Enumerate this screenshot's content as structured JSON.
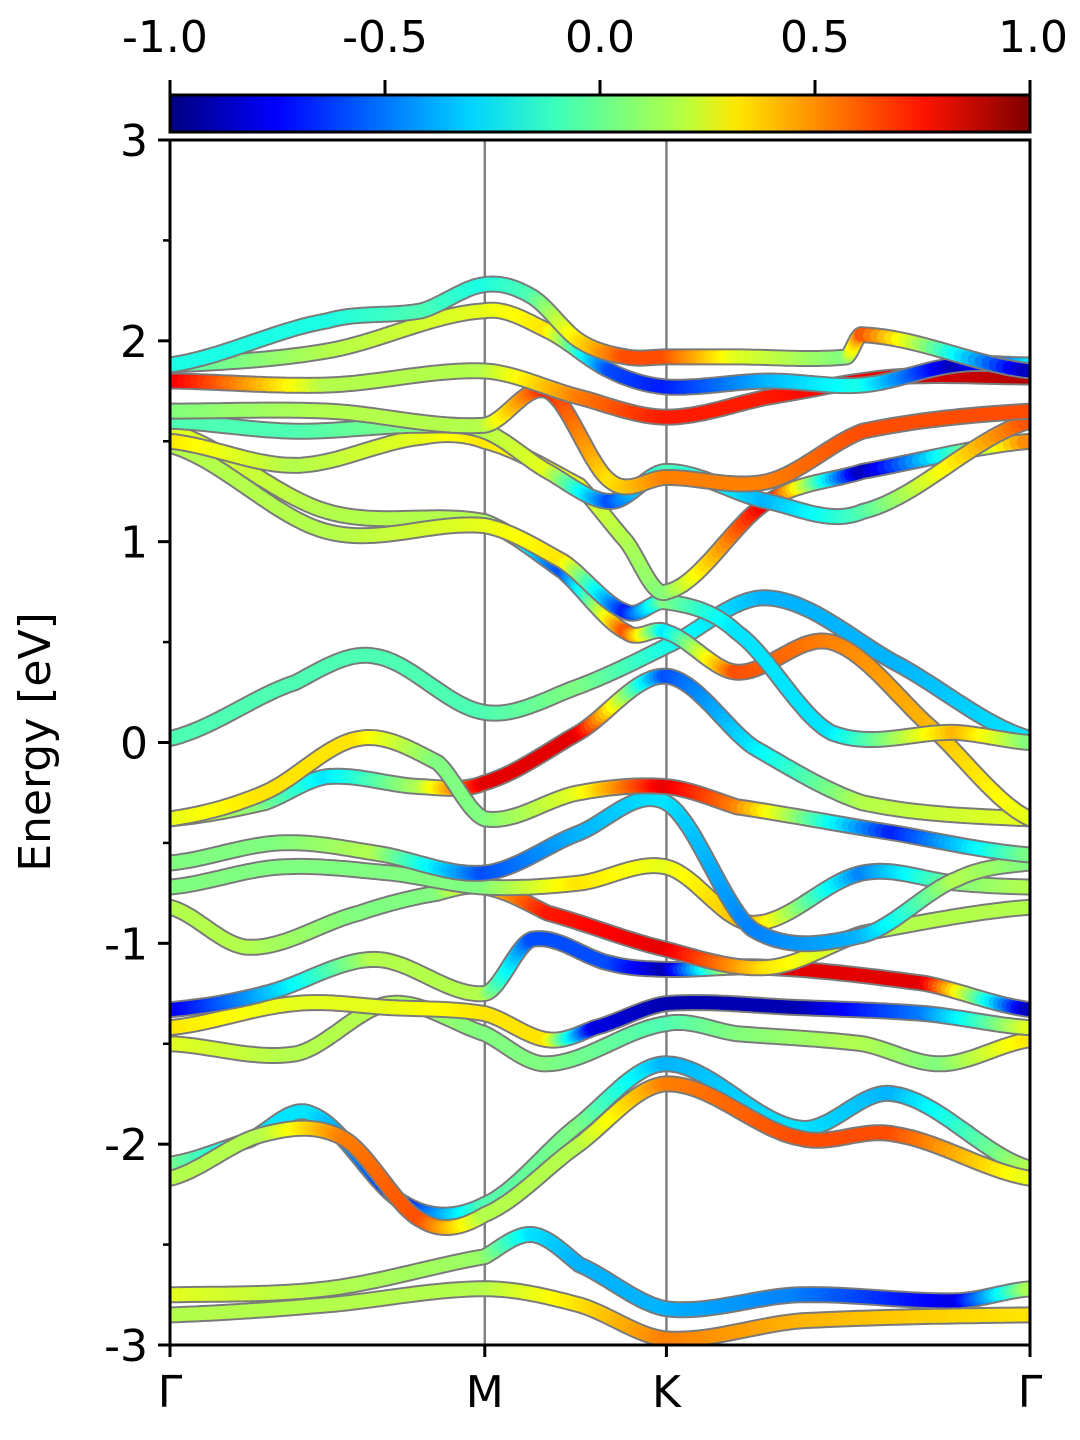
{
  "chart_data": {
    "type": "line",
    "title": "",
    "xlabel": "",
    "ylabel": "Energy [eV]",
    "ylim": [
      -3,
      3
    ],
    "yticks": [
      "-3",
      "-2",
      "-1",
      "0",
      "1",
      "2",
      "3"
    ],
    "ytick_values": [
      -3,
      -2,
      -1,
      0,
      1,
      2,
      3
    ],
    "xticks": [
      {
        "label": "Γ",
        "pos": 0.0
      },
      {
        "label": "M",
        "pos": 1.0
      },
      {
        "label": "K",
        "pos": 1.577
      },
      {
        "label": "Γ",
        "pos": 2.732
      }
    ],
    "xlim": [
      0.0,
      2.732
    ],
    "colorbar": {
      "ticks": [
        "-1.0",
        "-0.5",
        "0.0",
        "0.5",
        "1.0"
      ],
      "tick_values": [
        -1.0,
        -0.5,
        0.0,
        0.5,
        1.0
      ],
      "range": [
        -1.0,
        1.0
      ],
      "colormap": "jet"
    },
    "bands": [
      {
        "x": [
          0,
          0.5,
          1.0,
          1.3,
          1.577,
          2.0,
          2.732
        ],
        "y": [
          -2.85,
          -2.8,
          -2.72,
          -2.8,
          -2.97,
          -2.88,
          -2.85
        ],
        "c": [
          0.1,
          0.1,
          0.1,
          0.3,
          0.5,
          0.4,
          0.3
        ]
      },
      {
        "x": [
          0,
          0.5,
          1.0,
          1.15,
          1.3,
          1.577,
          2.0,
          2.5,
          2.732
        ],
        "y": [
          -2.75,
          -2.72,
          -2.56,
          -2.45,
          -2.6,
          -2.82,
          -2.75,
          -2.78,
          -2.72
        ],
        "c": [
          0.2,
          0.1,
          0.05,
          -0.3,
          -0.4,
          -0.4,
          -0.5,
          -0.8,
          0.1
        ]
      },
      {
        "x": [
          0,
          0.25,
          0.45,
          0.75,
          1.0,
          1.3,
          1.577,
          2.0,
          2.3,
          2.732
        ],
        "y": [
          -2.1,
          -1.98,
          -1.85,
          -2.3,
          -2.3,
          -1.9,
          -1.6,
          -1.92,
          -1.75,
          -2.12
        ],
        "c": [
          0.0,
          -0.3,
          -0.3,
          -0.7,
          -0.1,
          0.0,
          -0.4,
          -0.3,
          -0.4,
          0.1
        ]
      },
      {
        "x": [
          0,
          0.3,
          0.55,
          0.8,
          1.0,
          1.3,
          1.577,
          2.0,
          2.3,
          2.732
        ],
        "y": [
          -2.17,
          -1.95,
          -1.97,
          -2.38,
          -2.35,
          -2.0,
          -1.7,
          -1.97,
          -1.95,
          -2.17
        ],
        "c": [
          0.1,
          0.1,
          0.5,
          0.6,
          0.1,
          0.1,
          0.5,
          0.6,
          0.6,
          0.2
        ]
      },
      {
        "x": [
          0,
          0.4,
          0.7,
          1.0,
          1.2,
          1.577,
          1.8,
          2.2,
          2.45,
          2.732
        ],
        "y": [
          -1.5,
          -1.55,
          -1.3,
          -1.45,
          -1.6,
          -1.4,
          -1.45,
          -1.5,
          -1.6,
          -1.48
        ],
        "c": [
          0.2,
          0.1,
          0.1,
          0.0,
          0.0,
          -0.1,
          0.0,
          0.1,
          0.0,
          0.3
        ]
      },
      {
        "x": [
          0,
          0.4,
          0.7,
          1.0,
          1.2,
          1.35,
          1.577,
          2.0,
          2.4,
          2.732
        ],
        "y": [
          -1.42,
          -1.3,
          -1.32,
          -1.35,
          -1.48,
          -1.42,
          -1.3,
          -1.32,
          -1.35,
          -1.42
        ],
        "c": [
          0.3,
          0.2,
          0.2,
          0.3,
          0.3,
          -0.8,
          -0.9,
          -0.9,
          -0.5,
          0.2
        ]
      },
      {
        "x": [
          0,
          0.3,
          0.65,
          1.0,
          1.15,
          1.4,
          1.577,
          1.9,
          2.4,
          2.732
        ],
        "y": [
          -1.33,
          -1.25,
          -1.08,
          -1.25,
          -0.98,
          -1.1,
          -1.13,
          -1.12,
          -1.2,
          -1.33
        ],
        "c": [
          -0.8,
          -0.4,
          0.1,
          0.1,
          -0.6,
          -0.6,
          -0.9,
          0.8,
          0.8,
          -0.9
        ]
      },
      {
        "x": [
          0,
          0.25,
          0.6,
          0.85,
          1.0,
          1.2,
          1.577,
          1.9,
          2.2,
          2.732
        ],
        "y": [
          -0.82,
          -1.02,
          -0.85,
          -0.75,
          -0.72,
          -0.85,
          -1.03,
          -1.12,
          -0.95,
          -0.82
        ],
        "c": [
          0.1,
          0.1,
          0.0,
          0.0,
          0.3,
          0.7,
          0.8,
          0.3,
          0.1,
          0.1
        ]
      },
      {
        "x": [
          0,
          0.35,
          0.7,
          1.0,
          1.3,
          1.577,
          1.85,
          2.2,
          2.5,
          2.732
        ],
        "y": [
          -0.72,
          -0.62,
          -0.65,
          -0.72,
          -0.7,
          -0.62,
          -0.9,
          -0.65,
          -0.7,
          -0.72
        ],
        "c": [
          0.0,
          0.0,
          0.0,
          0.0,
          0.3,
          0.2,
          0.4,
          -0.5,
          0.0,
          0.1
        ]
      },
      {
        "x": [
          0,
          0.35,
          0.65,
          1.0,
          1.3,
          1.577,
          1.85,
          2.2,
          2.5,
          2.732
        ],
        "y": [
          -0.6,
          -0.5,
          -0.55,
          -0.65,
          -0.45,
          -0.3,
          -0.93,
          -0.96,
          -0.68,
          -0.6
        ],
        "c": [
          0.0,
          0.0,
          0.1,
          -0.6,
          -0.4,
          -0.3,
          -0.5,
          -0.4,
          0.1,
          0.0
        ]
      },
      {
        "x": [
          0,
          0.3,
          0.5,
          0.8,
          1.0,
          1.3,
          1.577,
          1.85,
          2.2,
          2.732
        ],
        "y": [
          -0.38,
          -0.3,
          -0.17,
          -0.22,
          -0.2,
          0.05,
          0.33,
          -0.02,
          -0.3,
          -0.38
        ],
        "c": [
          0.2,
          0.0,
          -0.3,
          0.1,
          0.8,
          0.8,
          -0.6,
          -0.3,
          0.1,
          0.2
        ]
      },
      {
        "x": [
          0,
          0.3,
          0.6,
          0.85,
          1.0,
          1.3,
          1.577,
          1.8,
          2.3,
          2.732
        ],
        "y": [
          -0.38,
          -0.25,
          0.02,
          -0.1,
          -0.38,
          -0.25,
          -0.22,
          -0.32,
          -0.45,
          -0.56
        ],
        "c": [
          0.2,
          0.3,
          0.3,
          0.0,
          0.0,
          0.2,
          0.8,
          0.5,
          -0.7,
          0.0
        ]
      },
      {
        "x": [
          0,
          0.4,
          0.65,
          1.0,
          1.3,
          1.577,
          1.9,
          2.3,
          2.732
        ],
        "y": [
          0.02,
          0.3,
          0.43,
          0.15,
          0.28,
          0.48,
          0.72,
          0.4,
          0.02
        ],
        "c": [
          -0.1,
          -0.1,
          -0.1,
          -0.1,
          0.0,
          -0.2,
          -0.4,
          -0.4,
          -0.3
        ]
      },
      {
        "x": [
          0,
          0.5,
          1.0,
          1.25,
          1.45,
          1.577,
          1.8,
          2.1,
          2.4,
          2.732
        ],
        "y": [
          1.55,
          1.15,
          1.1,
          0.85,
          0.55,
          0.55,
          0.35,
          0.5,
          0.1,
          -0.38
        ],
        "c": [
          0.2,
          0.1,
          0.1,
          -0.6,
          0.6,
          -0.3,
          0.6,
          0.5,
          0.4,
          0.2
        ]
      },
      {
        "x": [
          0,
          0.5,
          1.0,
          1.25,
          1.45,
          1.577,
          1.8,
          2.1,
          2.5,
          2.732
        ],
        "y": [
          1.48,
          1.05,
          1.08,
          0.9,
          0.65,
          0.7,
          0.55,
          0.05,
          0.05,
          0.0
        ],
        "c": [
          0.1,
          0.1,
          0.2,
          0.3,
          -0.7,
          0.0,
          -0.3,
          -0.3,
          0.4,
          0.0
        ]
      },
      {
        "x": [
          0,
          0.4,
          0.8,
          1.0,
          1.3,
          1.45,
          1.577,
          1.9,
          2.2,
          2.732
        ],
        "y": [
          1.5,
          1.38,
          1.52,
          1.5,
          1.28,
          1.0,
          0.75,
          1.2,
          1.35,
          1.5
        ],
        "c": [
          0.3,
          0.1,
          0.2,
          0.3,
          0.2,
          0.1,
          0.0,
          0.8,
          -0.9,
          0.5
        ]
      },
      {
        "x": [
          0,
          0.4,
          0.8,
          1.0,
          1.2,
          1.4,
          1.577,
          1.9,
          2.2,
          2.732
        ],
        "y": [
          1.6,
          1.55,
          1.58,
          1.55,
          1.35,
          1.2,
          1.35,
          1.2,
          1.15,
          1.6
        ],
        "c": [
          -0.1,
          -0.1,
          0.0,
          0.1,
          0.2,
          -0.6,
          -0.1,
          -0.4,
          -0.1,
          0.6
        ]
      },
      {
        "x": [
          0,
          0.5,
          1.0,
          1.2,
          1.4,
          1.577,
          1.9,
          2.2,
          2.732
        ],
        "y": [
          1.65,
          1.65,
          1.58,
          1.75,
          1.3,
          1.32,
          1.3,
          1.55,
          1.65
        ],
        "c": [
          0.0,
          0.1,
          0.1,
          0.7,
          0.3,
          0.5,
          0.5,
          0.6,
          0.6
        ]
      },
      {
        "x": [
          0,
          0.5,
          1.0,
          1.3,
          1.577,
          1.9,
          2.3,
          2.732
        ],
        "y": [
          1.8,
          1.78,
          1.85,
          1.72,
          1.62,
          1.72,
          1.82,
          1.82
        ],
        "c": [
          0.8,
          0.1,
          0.1,
          0.5,
          0.7,
          0.7,
          0.8,
          0.9
        ]
      },
      {
        "x": [
          0,
          0.5,
          1.0,
          1.2,
          1.4,
          1.577,
          1.9,
          2.2,
          2.5,
          2.732
        ],
        "y": [
          1.88,
          1.95,
          2.15,
          2.05,
          1.85,
          1.77,
          1.8,
          1.78,
          1.88,
          1.88
        ],
        "c": [
          -0.1,
          0.1,
          0.2,
          0.3,
          -0.6,
          -0.7,
          -0.4,
          -0.2,
          -0.9,
          -0.3
        ]
      },
      {
        "x": [
          0,
          0.5,
          0.8,
          1.0,
          1.15,
          1.3,
          1.45,
          1.577,
          1.8,
          2.15,
          2.2,
          2.732
        ],
        "y": [
          1.88,
          2.1,
          2.15,
          2.28,
          2.22,
          2.0,
          1.92,
          1.92,
          1.92,
          1.92,
          2.03,
          1.85
        ],
        "c": [
          -0.2,
          -0.2,
          -0.1,
          -0.2,
          -0.1,
          0.3,
          0.6,
          0.6,
          0.2,
          0.0,
          0.6,
          -0.9
        ]
      }
    ]
  }
}
